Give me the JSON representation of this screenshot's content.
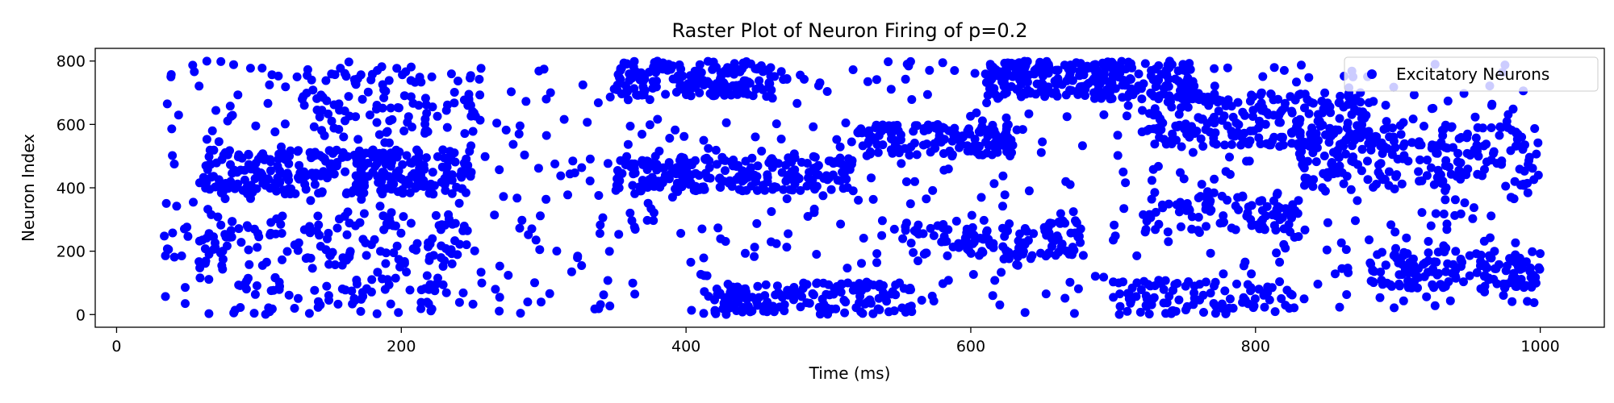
{
  "chart_data": {
    "type": "scatter",
    "title": "Raster Plot of Neuron Firing of p=0.2",
    "xlabel": "Time (ms)",
    "ylabel": "Neuron Index",
    "xlim": [
      -15,
      1045
    ],
    "ylim": [
      -40,
      840
    ],
    "xticks": [
      "0",
      "200",
      "400",
      "600",
      "800",
      "1000"
    ],
    "yticks": [
      "0",
      "200",
      "400",
      "600",
      "800"
    ],
    "grid": false,
    "legend": {
      "position": "top-right",
      "entries": [
        "Excitatory Neurons"
      ]
    },
    "series": [
      {
        "name": "Excitatory Neurons",
        "color": "#0000ff",
        "clusters": [
          {
            "x": [
              60,
              250
            ],
            "y": [
              380,
              520
            ],
            "n": 300
          },
          {
            "x": [
              60,
              250
            ],
            "y": [
              150,
              330
            ],
            "n": 120
          },
          {
            "x": [
              80,
              230
            ],
            "y": [
              0,
              120
            ],
            "n": 60
          },
          {
            "x": [
              130,
              260
            ],
            "y": [
              560,
              790
            ],
            "n": 90
          },
          {
            "x": [
              350,
              460
            ],
            "y": [
              690,
              800
            ],
            "n": 160
          },
          {
            "x": [
              350,
              520
            ],
            "y": [
              390,
              500
            ],
            "n": 220
          },
          {
            "x": [
              420,
              560
            ],
            "y": [
              0,
              100
            ],
            "n": 150
          },
          {
            "x": [
              520,
              630
            ],
            "y": [
              500,
              600
            ],
            "n": 130
          },
          {
            "x": [
              550,
              680
            ],
            "y": [
              180,
              300
            ],
            "n": 110
          },
          {
            "x": [
              610,
              760
            ],
            "y": [
              680,
              800
            ],
            "n": 250
          },
          {
            "x": [
              720,
              880
            ],
            "y": [
              530,
              700
            ],
            "n": 220
          },
          {
            "x": [
              830,
              1000
            ],
            "y": [
              400,
              600
            ],
            "n": 200
          },
          {
            "x": [
              880,
              1000
            ],
            "y": [
              80,
              200
            ],
            "n": 140
          },
          {
            "x": [
              700,
              830
            ],
            "y": [
              0,
              110
            ],
            "n": 90
          },
          {
            "x": [
              720,
              830
            ],
            "y": [
              260,
              380
            ],
            "n": 90
          },
          {
            "x": [
              30,
              1000
            ],
            "y": [
              0,
              800
            ],
            "n": 700
          }
        ]
      }
    ]
  }
}
